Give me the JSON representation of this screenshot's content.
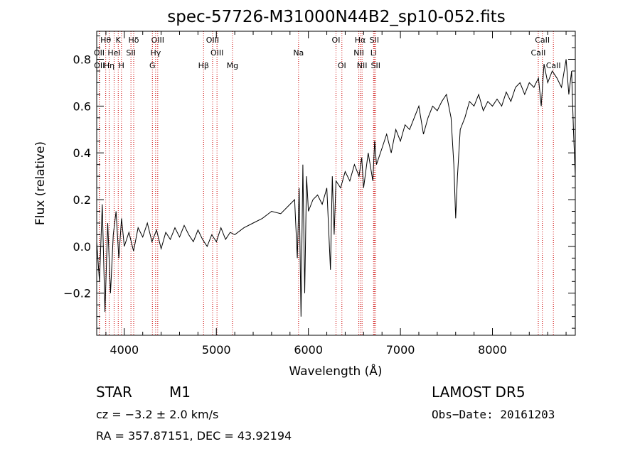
{
  "chart_data": {
    "type": "line",
    "title": "spec-57726-M31000N44B2_sp10-052.fits",
    "xlabel": "Wavelength (Å)",
    "ylabel": "Flux (relative)",
    "xlim": [
      3700,
      8900
    ],
    "ylim": [
      -0.38,
      0.92
    ],
    "x_ticks": [
      4000,
      5000,
      6000,
      7000,
      8000
    ],
    "x_tick_labels": [
      "4000",
      "5000",
      "6000",
      "7000",
      "8000"
    ],
    "y_ticks": [
      -0.2,
      0.0,
      0.2,
      0.4,
      0.6,
      0.8
    ],
    "y_tick_labels": [
      "−0.2",
      "0.0",
      "0.2",
      "0.4",
      "0.6",
      "0.8"
    ],
    "grid": false,
    "line_color": "#000000",
    "marker_color": "#cc0000",
    "series": [
      {
        "x": [
          3700,
          3730,
          3760,
          3790,
          3820,
          3850,
          3880,
          3910,
          3940,
          3970,
          4000,
          4050,
          4100,
          4150,
          4200,
          4250,
          4300,
          4350,
          4400,
          4450,
          4500,
          4550,
          4600,
          4650,
          4700,
          4750,
          4800,
          4850,
          4900,
          4950,
          5000,
          5050,
          5100,
          5150,
          5200,
          5300,
          5400,
          5500,
          5600,
          5700,
          5800,
          5850,
          5880,
          5900,
          5920,
          5940,
          5960,
          5980,
          6000,
          6050,
          6100,
          6150,
          6200,
          6240,
          6260,
          6280,
          6300,
          6350,
          6400,
          6450,
          6500,
          6550,
          6580,
          6600,
          6650,
          6700,
          6720,
          6740,
          6800,
          6850,
          6900,
          6950,
          7000,
          7050,
          7100,
          7150,
          7200,
          7250,
          7300,
          7350,
          7400,
          7450,
          7500,
          7550,
          7580,
          7600,
          7620,
          7650,
          7700,
          7750,
          7800,
          7850,
          7900,
          7950,
          8000,
          8050,
          8100,
          8150,
          8200,
          8250,
          8300,
          8350,
          8400,
          8450,
          8500,
          8530,
          8560,
          8600,
          8650,
          8700,
          8750,
          8800,
          8830,
          8860,
          8880,
          8900
        ],
        "y": [
          0.02,
          -0.15,
          0.18,
          -0.28,
          0.1,
          -0.2,
          0.05,
          0.15,
          -0.05,
          0.12,
          0.0,
          0.06,
          -0.02,
          0.08,
          0.04,
          0.1,
          0.02,
          0.07,
          -0.01,
          0.06,
          0.03,
          0.08,
          0.04,
          0.09,
          0.05,
          0.02,
          0.07,
          0.03,
          0.0,
          0.05,
          0.02,
          0.08,
          0.03,
          0.06,
          0.05,
          0.08,
          0.1,
          0.12,
          0.15,
          0.14,
          0.18,
          0.2,
          -0.05,
          0.25,
          -0.3,
          0.35,
          -0.2,
          0.3,
          0.15,
          0.2,
          0.22,
          0.18,
          0.25,
          -0.1,
          0.3,
          0.05,
          0.28,
          0.25,
          0.32,
          0.28,
          0.35,
          0.3,
          0.38,
          0.25,
          0.4,
          0.28,
          0.45,
          0.35,
          0.42,
          0.48,
          0.4,
          0.5,
          0.45,
          0.52,
          0.5,
          0.55,
          0.6,
          0.48,
          0.55,
          0.6,
          0.58,
          0.62,
          0.65,
          0.55,
          0.35,
          0.12,
          0.3,
          0.5,
          0.55,
          0.62,
          0.6,
          0.65,
          0.58,
          0.62,
          0.6,
          0.63,
          0.6,
          0.66,
          0.62,
          0.68,
          0.7,
          0.65,
          0.7,
          0.68,
          0.72,
          0.6,
          0.78,
          0.7,
          0.75,
          0.72,
          0.68,
          0.8,
          0.65,
          0.75,
          0.5,
          0.3
        ]
      }
    ],
    "spectral_lines": [
      {
        "label": "Hθ",
        "x": 3798,
        "row": 0
      },
      {
        "label": "K",
        "x": 3934,
        "row": 0
      },
      {
        "label": "Hδ",
        "x": 4102,
        "row": 0
      },
      {
        "label": "OIII",
        "x": 4363,
        "row": 0
      },
      {
        "label": "OIII",
        "x": 4959,
        "row": 0
      },
      {
        "label": "OI",
        "x": 6300,
        "row": 0
      },
      {
        "label": "Hα",
        "x": 6563,
        "row": 0
      },
      {
        "label": "SII",
        "x": 6716,
        "row": 0
      },
      {
        "label": "CaII",
        "x": 8542,
        "row": 0
      },
      {
        "label": "OII",
        "x": 3727,
        "row": 1
      },
      {
        "label": "HeI",
        "x": 3889,
        "row": 1
      },
      {
        "label": "SII",
        "x": 4072,
        "row": 1
      },
      {
        "label": "Hγ",
        "x": 4340,
        "row": 1
      },
      {
        "label": "OIII",
        "x": 5007,
        "row": 1
      },
      {
        "label": "Na",
        "x": 5893,
        "row": 1
      },
      {
        "label": "NII",
        "x": 6548,
        "row": 1
      },
      {
        "label": "Li",
        "x": 6708,
        "row": 1
      },
      {
        "label": "CaII",
        "x": 8498,
        "row": 1
      },
      {
        "label": "OII",
        "x": 3729,
        "row": 2
      },
      {
        "label": "Hη",
        "x": 3835,
        "row": 2
      },
      {
        "label": "H",
        "x": 3969,
        "row": 2
      },
      {
        "label": "G",
        "x": 4305,
        "row": 2
      },
      {
        "label": "Hβ",
        "x": 4861,
        "row": 2
      },
      {
        "label": "Mg",
        "x": 5175,
        "row": 2
      },
      {
        "label": "OI",
        "x": 6364,
        "row": 2
      },
      {
        "label": "NII",
        "x": 6583,
        "row": 2
      },
      {
        "label": "SII",
        "x": 6731,
        "row": 2
      },
      {
        "label": "CaII",
        "x": 8662,
        "row": 2
      }
    ]
  },
  "info": {
    "object_class": "STAR",
    "subclass": "M1",
    "survey": "LAMOST DR5",
    "cz": "cz = −3.2 ± 2.0 km/s",
    "obs_date": "Obs−Date: 20161203",
    "coords": "RA = 357.87151, DEC =  43.92194"
  }
}
